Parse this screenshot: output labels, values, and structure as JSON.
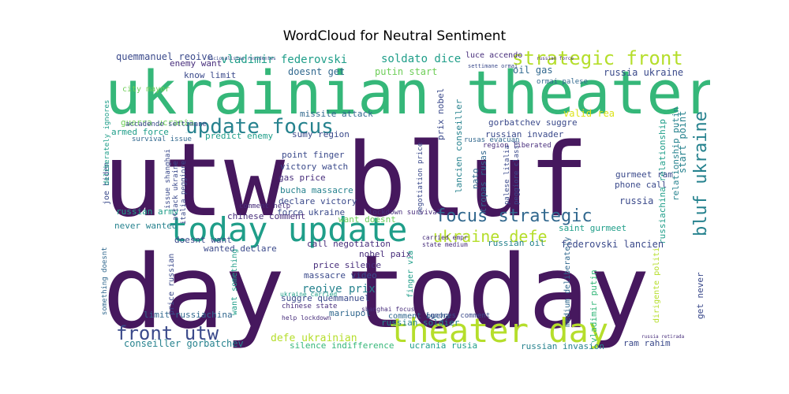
{
  "title": "WordCloud for Neutral Sentiment",
  "colors": {
    "dark_purple": "#46185e",
    "purple": "#472d7b",
    "indigo": "#3b4a8b",
    "blue": "#31688e",
    "teal": "#26828e",
    "sea": "#1f9e89",
    "green": "#35b779",
    "lime": "#6ece58",
    "yellow_green": "#b5de2b",
    "yellow": "#dce319"
  },
  "words": [
    {
      "text": "utw bluf",
      "color": "dark_purple"
    },
    {
      "text": "day today",
      "color": "dark_purple"
    },
    {
      "text": "ukrainian theater",
      "color": "green"
    },
    {
      "text": "today update",
      "color": "sea"
    },
    {
      "text": "theater day",
      "color": "yellow_green"
    },
    {
      "text": "update focus",
      "color": "teal"
    },
    {
      "text": "focus strategic",
      "color": "blue"
    },
    {
      "text": "strategic front",
      "color": "yellow_green"
    },
    {
      "text": "bluf ukraine",
      "color": "teal"
    },
    {
      "text": "front utw",
      "color": "indigo"
    },
    {
      "text": "ukraine defe",
      "color": "yellow_green"
    },
    {
      "text": "soldato dice",
      "color": "sea"
    },
    {
      "text": "vladimir federovski",
      "color": "sea"
    },
    {
      "text": "quemmanuel reoive",
      "color": "indigo"
    },
    {
      "text": "enemy want",
      "color": "purple"
    },
    {
      "text": "luce accendo",
      "color": "purple"
    },
    {
      "text": "putin start",
      "color": "lime"
    },
    {
      "text": "doesnt get",
      "color": "blue"
    },
    {
      "text": "know limit",
      "color": "indigo"
    },
    {
      "text": "oil gas",
      "color": "blue"
    },
    {
      "text": "russia ukraine",
      "color": "indigo"
    },
    {
      "text": "missile attack",
      "color": "blue"
    },
    {
      "text": "update focus",
      "color": "teal"
    },
    {
      "text": "guerra ucrania",
      "color": "lime"
    },
    {
      "text": "armed force",
      "color": "sea"
    },
    {
      "text": "accadendo settimane",
      "color": "indigo"
    },
    {
      "text": "survival issue",
      "color": "blue"
    },
    {
      "text": "predict enemy",
      "color": "sea"
    },
    {
      "text": "sumy region",
      "color": "indigo"
    },
    {
      "text": "point finger",
      "color": "indigo"
    },
    {
      "text": "victory watch",
      "color": "indigo"
    },
    {
      "text": "gas price",
      "color": "purple"
    },
    {
      "text": "bucha massacre",
      "color": "teal"
    },
    {
      "text": "declare victory",
      "color": "indigo"
    },
    {
      "text": "force ukraine",
      "color": "indigo"
    },
    {
      "text": "want doesnt",
      "color": "lime"
    },
    {
      "text": "comment help",
      "color": "purple"
    },
    {
      "text": "russian army",
      "color": "sea"
    },
    {
      "text": "never wanted",
      "color": "teal"
    },
    {
      "text": "chinese comment",
      "color": "purple"
    },
    {
      "text": "doesnt want",
      "color": "indigo"
    },
    {
      "text": "wanted declare",
      "color": "indigo"
    },
    {
      "text": "call negotiation",
      "color": "purple"
    },
    {
      "text": "nobel paix",
      "color": "purple"
    },
    {
      "text": "price silence",
      "color": "purple"
    },
    {
      "text": "massacre video",
      "color": "indigo"
    },
    {
      "text": "reoive prix",
      "color": "teal"
    },
    {
      "text": "suggre quemmanuel",
      "color": "indigo"
    },
    {
      "text": "mariupol",
      "color": "blue"
    },
    {
      "text": "limit russiachina",
      "color": "blue"
    },
    {
      "text": "defe ukrainian",
      "color": "yellow_green"
    },
    {
      "text": "conseiller gorbatchev",
      "color": "teal"
    },
    {
      "text": "silence indifference",
      "color": "green"
    },
    {
      "text": "russian soldier",
      "color": "teal"
    },
    {
      "text": "ucrania rusia",
      "color": "sea"
    },
    {
      "text": "russian invasion",
      "color": "teal"
    },
    {
      "text": "ram rahim",
      "color": "indigo"
    },
    {
      "text": "comment bucha",
      "color": "blue"
    },
    {
      "text": "ignores comment",
      "color": "indigo"
    },
    {
      "text": "gorbatchev suggre",
      "color": "indigo"
    },
    {
      "text": "russian invader",
      "color": "indigo"
    },
    {
      "text": "valid rea",
      "color": "yellow"
    },
    {
      "text": "start point",
      "color": "teal"
    },
    {
      "text": "relationship putin",
      "color": "teal"
    },
    {
      "text": "russiachina relationship",
      "color": "sea"
    },
    {
      "text": "phone call",
      "color": "indigo"
    },
    {
      "text": "gurmeet ram",
      "color": "indigo"
    },
    {
      "text": "russia",
      "color": "indigo"
    },
    {
      "text": "saint gurmeet",
      "color": "sea"
    },
    {
      "text": "federovski lancien",
      "color": "indigo"
    },
    {
      "text": "russian oil",
      "color": "teal"
    },
    {
      "text": "medium deliberately",
      "color": "blue"
    },
    {
      "text": "vladimir putin",
      "color": "green"
    },
    {
      "text": "get never",
      "color": "indigo"
    },
    {
      "text": "lancien conseiller",
      "color": "teal"
    },
    {
      "text": "prix nobel",
      "color": "indigo"
    },
    {
      "text": "negotiation price",
      "color": "indigo"
    },
    {
      "text": "nato",
      "color": "blue"
    },
    {
      "text": "tropas rusas",
      "color": "blue"
    },
    {
      "text": "joe biden",
      "color": "indigo"
    },
    {
      "text": "issue shanghai",
      "color": "indigo"
    },
    {
      "text": "attack ukraine",
      "color": "indigo"
    },
    {
      "text": "italia peggiore",
      "color": "indigo"
    },
    {
      "text": "deliberately ignores",
      "color": "sea"
    },
    {
      "text": "something doesnt",
      "color": "blue"
    },
    {
      "text": "price russian",
      "color": "indigo"
    },
    {
      "text": "want something",
      "color": "sea"
    },
    {
      "text": "finger via",
      "color": "sea"
    },
    {
      "text": "shanghai focus",
      "color": "purple"
    },
    {
      "text": "chinese state",
      "color": "purple"
    },
    {
      "text": "state medium",
      "color": "purple"
    },
    {
      "text": "carried empr",
      "color": "purple"
    },
    {
      "text": "region liberated",
      "color": "purple"
    },
    {
      "text": "ukraine carried",
      "color": "sea"
    },
    {
      "text": "lockdown survival",
      "color": "purple"
    },
    {
      "text": "help lockdown",
      "color": "purple"
    },
    {
      "text": "city mayor",
      "color": "lime"
    },
    {
      "text": "ormai palese",
      "color": "blue"
    },
    {
      "text": "rusas evacuan",
      "color": "blue"
    },
    {
      "text": "russian force",
      "color": "purple"
    },
    {
      "text": "settimane ormai",
      "color": "indigo"
    },
    {
      "text": "palese litalia",
      "color": "indigo"
    },
    {
      "text": "peggiore classe",
      "color": "indigo"
    },
    {
      "text": "nacionalistas residentes",
      "color": "indigo"
    },
    {
      "text": "dirigente politi",
      "color": "yellow_green"
    },
    {
      "text": "russia retirada",
      "color": "purple"
    }
  ]
}
